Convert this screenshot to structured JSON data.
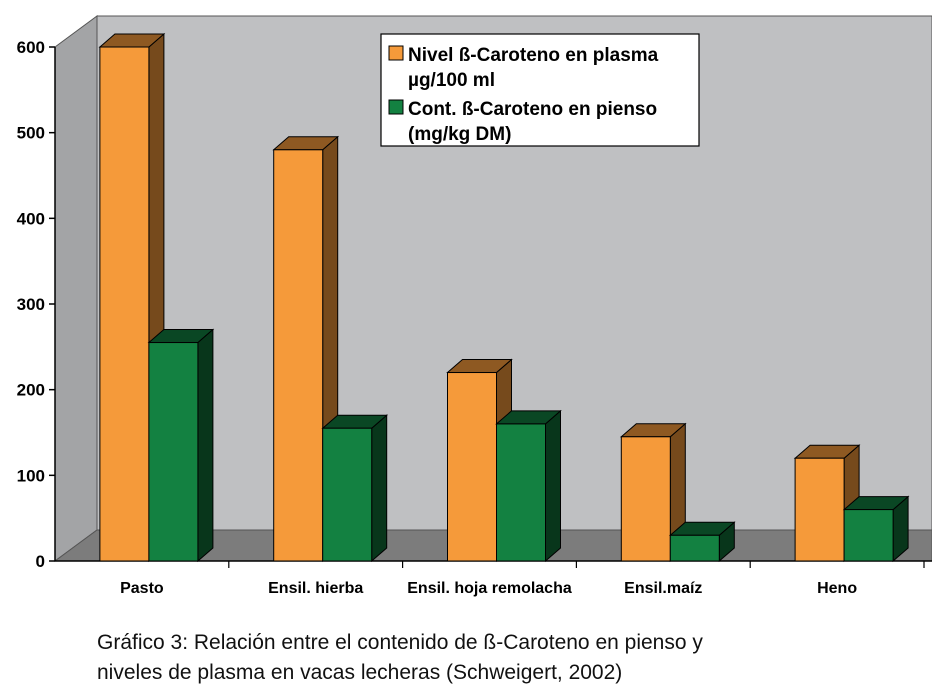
{
  "chart_data": {
    "type": "bar",
    "categories": [
      "Pasto",
      "Ensil. hierba",
      "Ensil. hoja remolacha",
      "Ensil.maíz",
      "Heno"
    ],
    "series": [
      {
        "name": "Nivel ß-Caroteno en plasma µg/100 ml",
        "legend_lines": [
          "Nivel ß-Caroteno en plasma",
          "µg/100 ml"
        ],
        "color": "#f59a3a",
        "values": [
          600,
          480,
          220,
          145,
          120
        ]
      },
      {
        "name": "Cont. ß-Caroteno en pienso (mg/kg DM)",
        "legend_lines": [
          "Cont. ß-Caroteno en pienso",
          "(mg/kg DM)"
        ],
        "color": "#138141",
        "values": [
          255,
          155,
          160,
          30,
          60
        ]
      }
    ],
    "yticks": [
      0,
      100,
      200,
      300,
      400,
      500,
      600
    ],
    "ylim": [
      0,
      600
    ],
    "grid": false,
    "three_d": true,
    "legend_position": "top-right",
    "plot_background": "#bfc0c2",
    "floor_color": "#7c7c7c"
  },
  "caption": {
    "line1": "Gráfico 3: Relación entre el contenido de ß-Caroteno en pienso y",
    "line2": "niveles de plasma en vacas lecheras (Schweigert, 2002)"
  }
}
